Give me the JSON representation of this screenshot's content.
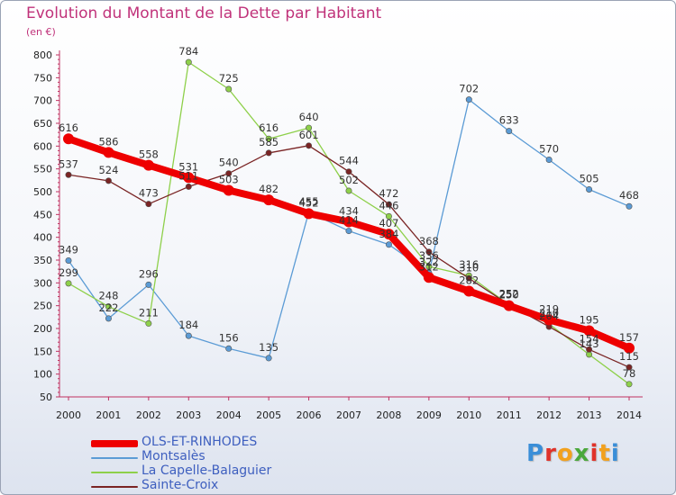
{
  "title": "Evolution du Montant de la Dette par Habitant",
  "subtitle": "(en €)",
  "logo": {
    "text": "Proxiti",
    "colors": [
      "#3a8ed8",
      "#e0322a",
      "#f2a11e",
      "#4aa83c",
      "#e0322a",
      "#f2a11e",
      "#3a8ed8"
    ]
  },
  "chart_data": {
    "type": "line",
    "title": "Evolution du Montant de la Dette par Habitant",
    "ylabel": "(en €)",
    "xlabel": "",
    "x": [
      "2000",
      "2001",
      "2002",
      "2003",
      "2004",
      "2005",
      "2006",
      "2007",
      "2008",
      "2009",
      "2010",
      "2011",
      "2012",
      "2013",
      "2014"
    ],
    "ylim": [
      50,
      800
    ],
    "yticks": [
      50,
      100,
      150,
      200,
      250,
      300,
      350,
      400,
      450,
      500,
      550,
      600,
      650,
      700,
      750,
      800
    ],
    "grid": false,
    "legend_position": "bottom-left",
    "series": [
      {
        "name": "OLS-ET-RINHODES",
        "color": "#ee0000",
        "width": 8,
        "marker": 6,
        "values": [
          616,
          586,
          558,
          531,
          503,
          482,
          452,
          434,
          407,
          312,
          282,
          250,
          219,
          195,
          157
        ],
        "labels": [
          "616",
          "586",
          "558",
          "531",
          "503",
          "482",
          "452",
          "434",
          "407",
          "312",
          "282",
          "250",
          "219",
          "195",
          "157"
        ]
      },
      {
        "name": "Montsalès",
        "color": "#5b9bd5",
        "width": 1.3,
        "marker": 3.2,
        "values": [
          349,
          222,
          296,
          184,
          156,
          135,
          455,
          414,
          384,
          322,
          702,
          633,
          570,
          505,
          468
        ],
        "labels": [
          "349",
          "222",
          "296",
          "184",
          "156",
          "135",
          "455",
          "414",
          "384",
          "322",
          "702",
          "633",
          "570",
          "505",
          "468"
        ]
      },
      {
        "name": "La Capelle-Balaguier",
        "color": "#8ed04a",
        "width": 1.3,
        "marker": 3.2,
        "values": [
          299,
          248,
          211,
          784,
          725,
          616,
          640,
          502,
          446,
          336,
          316,
          252,
          210,
          143,
          78
        ],
        "labels": [
          "299",
          "248",
          "211",
          "784",
          "725",
          "616",
          "640",
          "502",
          "446",
          "336",
          "316",
          "252",
          "210",
          "143",
          "78"
        ]
      },
      {
        "name": "Sainte-Croix",
        "color": "#7a2424",
        "width": 1.3,
        "marker": 3.2,
        "values": [
          537,
          524,
          473,
          511,
          540,
          585,
          601,
          544,
          472,
          368,
          310,
          252,
          204,
          154,
          115
        ],
        "labels": [
          "537",
          "524",
          "473",
          "511",
          "540",
          "585",
          "601",
          "544",
          "472",
          "368",
          "310",
          "252",
          "204",
          "154",
          "115"
        ]
      }
    ]
  }
}
